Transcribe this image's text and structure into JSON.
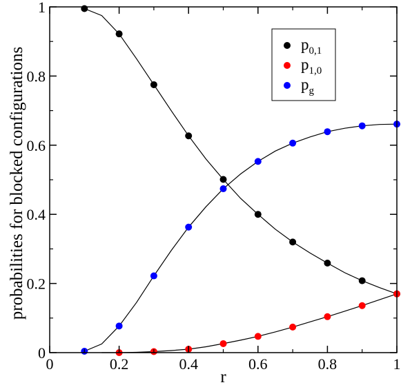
{
  "chart_data": {
    "type": "scatter",
    "title": "",
    "xlabel": "r",
    "ylabel": "probabilities for blocked configurations",
    "xlim": [
      0,
      1
    ],
    "ylim": [
      0,
      1
    ],
    "x_ticks": [
      "0",
      "0.2",
      "0.4",
      "0.6",
      "0.8",
      "1"
    ],
    "y_ticks": [
      "0",
      "0.2",
      "0.4",
      "0.6",
      "0.8",
      "1"
    ],
    "grid": false,
    "legend_position": "top-right",
    "series": [
      {
        "name_main": "p",
        "name_sub": "0,1",
        "color": "#000000",
        "points_x": [
          0.1,
          0.2,
          0.3,
          0.4,
          0.5,
          0.6,
          0.7,
          0.8,
          0.9,
          1.0
        ],
        "points_y": [
          0.995,
          0.922,
          0.775,
          0.627,
          0.501,
          0.4,
          0.32,
          0.259,
          0.208,
          0.17
        ],
        "curve_x": [
          0.1,
          0.15,
          0.2,
          0.25,
          0.3,
          0.35,
          0.4,
          0.45,
          0.5,
          0.55,
          0.6,
          0.65,
          0.7,
          0.75,
          0.8,
          0.85,
          0.9,
          0.95,
          1.0
        ],
        "curve_y": [
          0.995,
          0.975,
          0.922,
          0.85,
          0.775,
          0.7,
          0.627,
          0.56,
          0.501,
          0.446,
          0.4,
          0.357,
          0.32,
          0.288,
          0.259,
          0.231,
          0.208,
          0.188,
          0.17
        ]
      },
      {
        "name_main": "p",
        "name_sub": "1,0",
        "color": "#ff0000",
        "points_x": [
          0.2,
          0.3,
          0.4,
          0.5,
          0.6,
          0.7,
          0.8,
          0.9,
          1.0
        ],
        "points_y": [
          0.0,
          0.003,
          0.01,
          0.026,
          0.047,
          0.074,
          0.104,
          0.136,
          0.17
        ],
        "curve_x": [
          0.15,
          0.2,
          0.25,
          0.3,
          0.35,
          0.4,
          0.45,
          0.5,
          0.55,
          0.6,
          0.65,
          0.7,
          0.75,
          0.8,
          0.85,
          0.9,
          0.95,
          1.0
        ],
        "curve_y": [
          0.0,
          0.0,
          0.001,
          0.003,
          0.006,
          0.01,
          0.017,
          0.026,
          0.036,
          0.047,
          0.06,
          0.074,
          0.089,
          0.104,
          0.12,
          0.136,
          0.153,
          0.17
        ]
      },
      {
        "name_main": "p",
        "name_sub": "g",
        "color": "#0000ff",
        "points_x": [
          0.1,
          0.2,
          0.3,
          0.4,
          0.5,
          0.6,
          0.7,
          0.8,
          0.9,
          1.0
        ],
        "points_y": [
          0.004,
          0.077,
          0.222,
          0.363,
          0.474,
          0.553,
          0.606,
          0.639,
          0.656,
          0.661
        ],
        "curve_x": [
          0.1,
          0.15,
          0.2,
          0.25,
          0.3,
          0.35,
          0.4,
          0.45,
          0.5,
          0.55,
          0.6,
          0.65,
          0.7,
          0.75,
          0.8,
          0.85,
          0.9,
          0.95,
          1.0
        ],
        "curve_y": [
          0.004,
          0.025,
          0.077,
          0.145,
          0.222,
          0.295,
          0.363,
          0.422,
          0.474,
          0.517,
          0.553,
          0.583,
          0.606,
          0.624,
          0.639,
          0.649,
          0.656,
          0.66,
          0.661
        ]
      }
    ]
  }
}
